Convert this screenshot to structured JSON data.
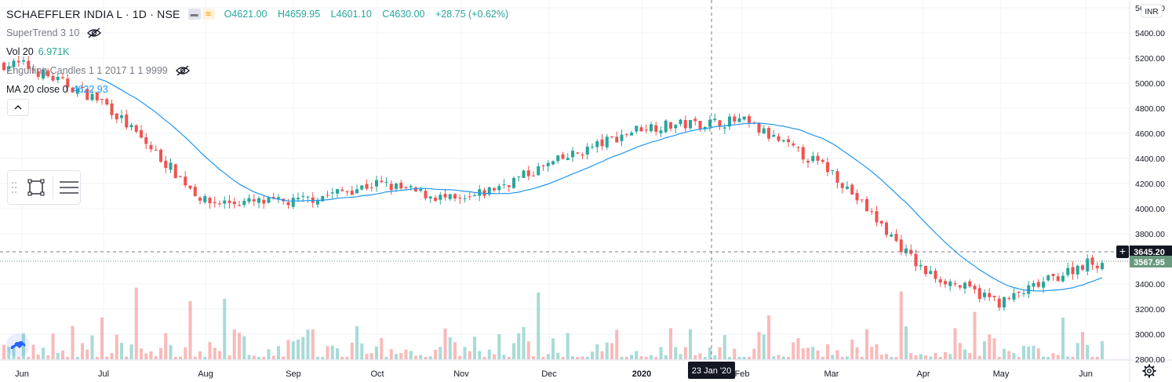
{
  "header": {
    "symbol_title": "SCHAEFFLER INDIA L · 1D · NSE",
    "ohlc": {
      "open": "O4621.00",
      "high": "H4659.95",
      "low": "L4601.10",
      "close": "C4630.00",
      "change": "+28.75 (+0.62%)"
    }
  },
  "indicators": [
    {
      "name": "SuperTrend 3 10",
      "value": "",
      "hidden": true
    },
    {
      "name": "Vol 20",
      "value": "6.971K",
      "value_color": "#26a69a",
      "hidden": false
    },
    {
      "name": "Engulfing Candles 1 1 2017 1 1 9999",
      "value": "",
      "hidden": true
    },
    {
      "name": "MA 20 close 0",
      "value": "4622.93",
      "value_color": "#2196f3",
      "hidden": false
    }
  ],
  "icons": {
    "hidden": "eye-off-icon",
    "collapse": "chevron-up-icon",
    "rect_tool": "rectangle-tool-icon",
    "menu": "menu-icon",
    "logo": "tradingview-logo-icon",
    "settings": "gear-icon",
    "crosshair": "plus-icon"
  },
  "price_axis": {
    "currency": "INR",
    "ticks": [
      "5600.00",
      "5400.00",
      "5200.00",
      "5000.00",
      "4800.00",
      "4600.00",
      "4400.00",
      "4200.00",
      "4000.00",
      "3800.00",
      "3600.00",
      "3400.00",
      "3200.00",
      "3000.00",
      "2800.00"
    ],
    "crosshair_label": "3645.20",
    "last_price_label": "3567.95"
  },
  "time_axis": {
    "ticks": [
      "Jun",
      "Jul",
      "Aug",
      "Sep",
      "Oct",
      "Nov",
      "Dec",
      "2020",
      "Feb",
      "Mar",
      "Apr",
      "May",
      "Jun"
    ],
    "crosshair_label": "23 Jan '20"
  },
  "colors": {
    "up": "#26a69a",
    "down": "#ef5350",
    "vol_up": "#26a69a66",
    "vol_down": "#ef535066",
    "ma": "#2196f3",
    "grid": "#f0f3fa",
    "last_price_bg": "#6a9a7e",
    "crosshair_bg": "#131722"
  },
  "chart_data": {
    "type": "candlestick",
    "title": "SCHAEFFLER INDIA L · 1D · NSE",
    "ylim": [
      2800,
      5650
    ],
    "y_unit": "INR",
    "x_range": [
      "2019-06-01",
      "2020-06-10"
    ],
    "grid": true,
    "key_points": {
      "x": [
        "2019-06",
        "2019-07",
        "2019-08",
        "2019-09",
        "2019-10",
        "2019-11",
        "2019-12",
        "2020-01",
        "2020-02",
        "2020-03",
        "2020-04",
        "2020-05",
        "2020-06"
      ],
      "close_approx": [
        5150,
        4850,
        4050,
        4050,
        4200,
        4050,
        4350,
        4650,
        4700,
        4300,
        3500,
        3250,
        3568
      ]
    },
    "last_close": 3567.95,
    "crosshair_price": 3645.2,
    "ma20_last": 4622.93,
    "volume_last": "6.971K"
  }
}
